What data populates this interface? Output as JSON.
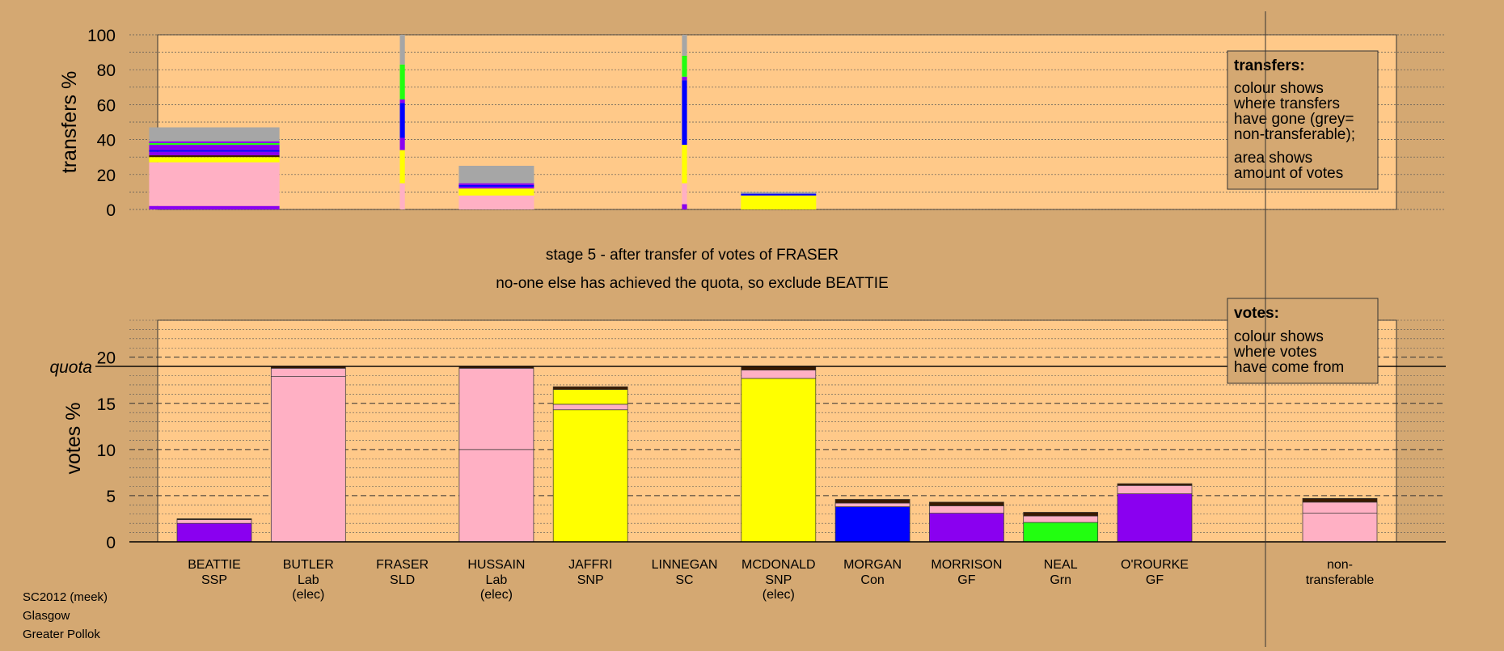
{
  "colors": {
    "background": "#d4a872",
    "plot_area": "#ffc989",
    "parties": {
      "SSP": "#8a00f0",
      "Lab": "#ffb0c4",
      "SLD": "#ffc989",
      "SNP": "#ffff00",
      "SC": "#ffc989",
      "Con": "#0000ff",
      "GF": "#8a00f0",
      "Grn": "#22ff10",
      "non-transferable": "#ffb0c4",
      "grey": "#a6a6a6",
      "dark": "#3a1a00"
    }
  },
  "header": {
    "stage_text": "stage 5 - after transfer of votes of FRASER",
    "status_text": "no-one else has achieved the quota, so exclude BEATTIE"
  },
  "legend_transfers": {
    "title": "transfers:",
    "lines": [
      "colour shows",
      "where transfers",
      "have gone (grey=",
      "non-transferable);"
    ],
    "lines2": [
      "area shows",
      "amount of votes"
    ]
  },
  "legend_votes": {
    "title": "votes:",
    "lines": [
      "colour shows",
      "where votes",
      "have come from"
    ]
  },
  "footer": {
    "line1": "SC2012 (meek)",
    "line2": "Glasgow",
    "line3": "Greater Pollok"
  },
  "chart_data": [
    {
      "type": "bar",
      "id": "transfers",
      "ylabel": "transfers %",
      "ylim": [
        0,
        100
      ],
      "yticks": [
        0,
        20,
        40,
        60,
        80,
        100
      ],
      "bars": [
        {
          "candidate": "BEATTIE",
          "width_pct": 2.6,
          "segments": [
            {
              "party": "GF",
              "value": 2
            },
            {
              "party": "Lab",
              "value": 25
            },
            {
              "party": "SNP",
              "value": 3
            },
            {
              "party": "dark",
              "value": 1
            },
            {
              "party": "GF",
              "value": 2
            },
            {
              "party": "Con",
              "value": 1
            },
            {
              "party": "GF",
              "value": 3
            },
            {
              "party": "Grn",
              "value": 1
            },
            {
              "party": "GF",
              "value": 1
            },
            {
              "party": "grey",
              "value": 8
            }
          ]
        },
        {
          "candidate": "FRASER",
          "width_pct": 0.1,
          "segments": [
            {
              "party": "Lab",
              "value": 15
            },
            {
              "party": "SNP",
              "value": 19
            },
            {
              "party": "GF",
              "value": 7
            },
            {
              "party": "Con",
              "value": 20
            },
            {
              "party": "GF",
              "value": 2
            },
            {
              "party": "Grn",
              "value": 20
            },
            {
              "party": "grey",
              "value": 17
            }
          ]
        },
        {
          "candidate": "HUSSAIN",
          "width_pct": 1.5,
          "segments": [
            {
              "party": "Lab",
              "value": 8
            },
            {
              "party": "SNP",
              "value": 4
            },
            {
              "party": "GF",
              "value": 1
            },
            {
              "party": "Con",
              "value": 1
            },
            {
              "party": "GF",
              "value": 1
            },
            {
              "party": "grey",
              "value": 10
            }
          ]
        },
        {
          "candidate": "LINNEGAN",
          "width_pct": 0.1,
          "segments": [
            {
              "party": "GF",
              "value": 3
            },
            {
              "party": "Lab",
              "value": 12
            },
            {
              "party": "SNP",
              "value": 22
            },
            {
              "party": "Con",
              "value": 37
            },
            {
              "party": "GF",
              "value": 1
            },
            {
              "party": "GF",
              "value": 1
            },
            {
              "party": "Grn",
              "value": 12
            },
            {
              "party": "grey",
              "value": 12
            }
          ]
        },
        {
          "candidate": "MCDONALD",
          "width_pct": 1.5,
          "segments": [
            {
              "party": "SNP",
              "value": 8
            },
            {
              "party": "Con",
              "value": 1
            },
            {
              "party": "grey",
              "value": 1
            }
          ]
        }
      ]
    },
    {
      "type": "bar",
      "id": "votes",
      "ylabel": "votes %",
      "ylim": [
        0,
        24
      ],
      "yticks": [
        0,
        5,
        10,
        15,
        20
      ],
      "quota": 19.0,
      "quota_label": "quota",
      "categories": [
        {
          "name": "BEATTIE",
          "party": "SSP",
          "note": ""
        },
        {
          "name": "BUTLER",
          "party": "Lab",
          "note": "(elec)"
        },
        {
          "name": "FRASER",
          "party": "SLD",
          "note": ""
        },
        {
          "name": "HUSSAIN",
          "party": "Lab",
          "note": "(elec)"
        },
        {
          "name": "JAFFRI",
          "party": "SNP",
          "note": ""
        },
        {
          "name": "LINNEGAN",
          "party": "SC",
          "note": ""
        },
        {
          "name": "MCDONALD",
          "party": "SNP",
          "note": "(elec)"
        },
        {
          "name": "MORGAN",
          "party": "Con",
          "note": ""
        },
        {
          "name": "MORRISON",
          "party": "GF",
          "note": ""
        },
        {
          "name": "NEAL",
          "party": "Grn",
          "note": ""
        },
        {
          "name": "O'ROURKE",
          "party": "GF",
          "note": ""
        },
        {
          "name": "non-",
          "party": "transferable",
          "note": ""
        }
      ],
      "bars": [
        {
          "segments": [
            {
              "party": "SSP",
              "value": 2.0
            },
            {
              "party": "Lab",
              "value": 0.4
            },
            {
              "party": "dark",
              "value": 0.1
            }
          ]
        },
        {
          "segments": [
            {
              "party": "Lab",
              "value": 17.9
            },
            {
              "party": "Lab",
              "value": 0.9
            },
            {
              "party": "dark",
              "value": 0.2
            }
          ]
        },
        {
          "segments": []
        },
        {
          "segments": [
            {
              "party": "Lab",
              "value": 10.0
            },
            {
              "party": "Lab",
              "value": 8.8
            },
            {
              "party": "dark",
              "value": 0.2
            }
          ]
        },
        {
          "segments": [
            {
              "party": "SNP",
              "value": 14.3
            },
            {
              "party": "Lab",
              "value": 0.6
            },
            {
              "party": "SNP",
              "value": 1.6
            },
            {
              "party": "dark",
              "value": 0.3
            }
          ]
        },
        {
          "segments": []
        },
        {
          "segments": [
            {
              "party": "SNP",
              "value": 17.7
            },
            {
              "party": "Lab",
              "value": 0.9
            },
            {
              "party": "dark",
              "value": 0.4
            }
          ]
        },
        {
          "segments": [
            {
              "party": "Con",
              "value": 3.8
            },
            {
              "party": "Lab",
              "value": 0.4
            },
            {
              "party": "dark",
              "value": 0.4
            }
          ]
        },
        {
          "segments": [
            {
              "party": "GF",
              "value": 3.1
            },
            {
              "party": "Lab",
              "value": 0.8
            },
            {
              "party": "dark",
              "value": 0.4
            }
          ]
        },
        {
          "segments": [
            {
              "party": "Grn",
              "value": 2.1
            },
            {
              "party": "Lab",
              "value": 0.7
            },
            {
              "party": "dark",
              "value": 0.4
            }
          ]
        },
        {
          "segments": [
            {
              "party": "GF",
              "value": 5.2
            },
            {
              "party": "Lab",
              "value": 0.9
            },
            {
              "party": "dark",
              "value": 0.2
            }
          ]
        },
        {
          "segments": [
            {
              "party": "non-transferable",
              "value": 3.1
            },
            {
              "party": "Lab",
              "value": 1.2
            },
            {
              "party": "dark",
              "value": 0.4
            }
          ]
        }
      ]
    }
  ]
}
